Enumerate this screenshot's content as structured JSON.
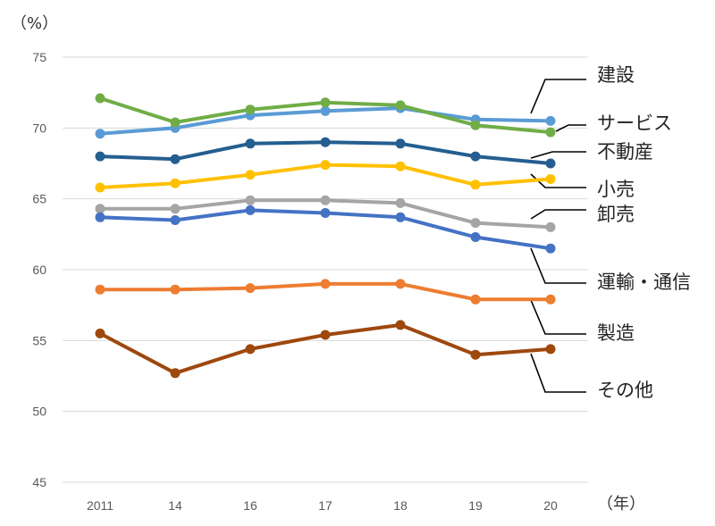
{
  "chart_data": {
    "type": "line",
    "y_unit": "（%）",
    "x_unit": "（年）",
    "categories": [
      "2011",
      "14",
      "16",
      "17",
      "18",
      "19",
      "20"
    ],
    "ylim": [
      45,
      75
    ],
    "yticks": [
      45,
      50,
      55,
      60,
      65,
      70,
      75
    ],
    "grid": true,
    "series": [
      {
        "name": "建設",
        "color": "#5b9bd5",
        "values": [
          69.6,
          70.0,
          70.9,
          71.2,
          71.4,
          70.6,
          70.5
        ]
      },
      {
        "name": "サービス",
        "color": "#70ad47",
        "values": [
          72.1,
          70.4,
          71.3,
          71.8,
          71.6,
          70.2,
          69.7
        ]
      },
      {
        "name": "不動産",
        "color": "#255e91",
        "values": [
          68.0,
          67.8,
          68.9,
          69.0,
          68.9,
          68.0,
          67.5
        ]
      },
      {
        "name": "小売",
        "color": "#ffc000",
        "values": [
          65.8,
          66.1,
          66.7,
          67.4,
          67.3,
          66.0,
          66.4
        ]
      },
      {
        "name": "卸売",
        "color": "#a5a5a5",
        "values": [
          64.3,
          64.3,
          64.9,
          64.9,
          64.7,
          63.3,
          63.0
        ]
      },
      {
        "name": "運輸・通信",
        "color": "#4472c4",
        "values": [
          63.7,
          63.5,
          64.2,
          64.0,
          63.7,
          62.3,
          61.5
        ]
      },
      {
        "name": "製造",
        "color": "#ed7d31",
        "values": [
          58.6,
          58.6,
          58.7,
          59.0,
          59.0,
          57.9,
          57.9
        ]
      },
      {
        "name": "その他",
        "color": "#9e480e",
        "values": [
          55.5,
          52.7,
          54.4,
          55.4,
          56.1,
          54.0,
          54.4
        ]
      }
    ]
  }
}
